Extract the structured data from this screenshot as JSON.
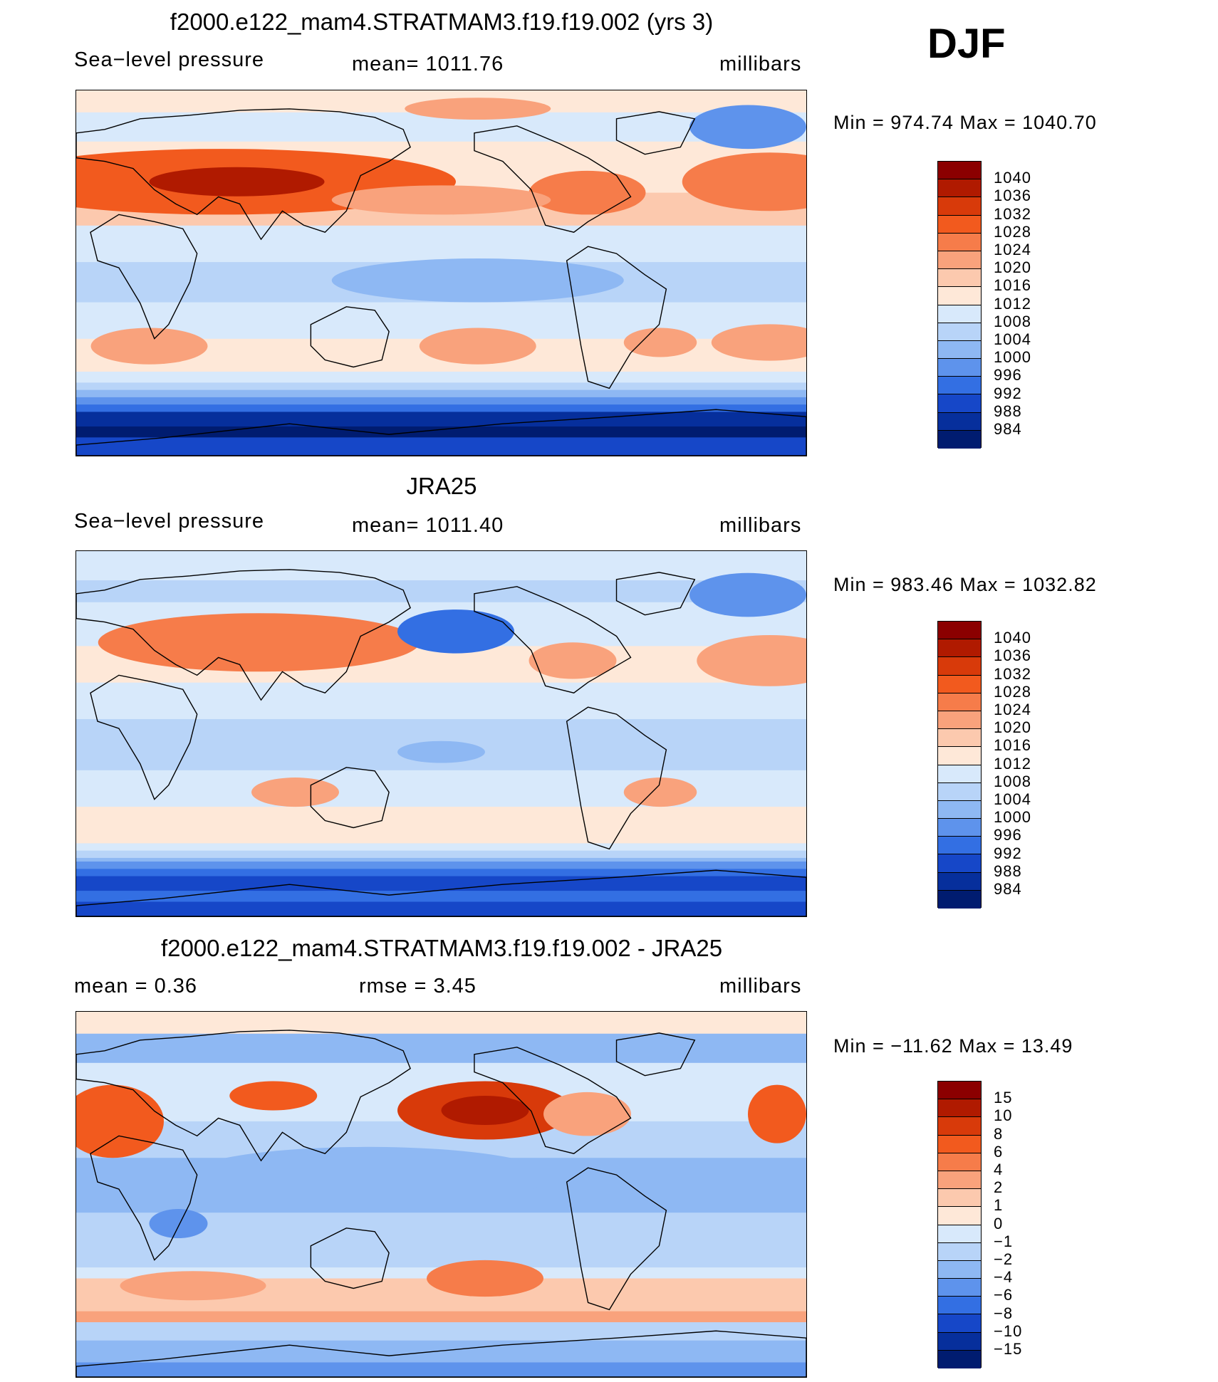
{
  "season": "DJF",
  "panels": [
    {
      "title": "f2000.e122_mam4.STRATMAM3.f19.f19.002 (yrs 3)",
      "subtitle_left": "Sea−level pressure",
      "subtitle_center": "mean=  1011.76",
      "subtitle_right": "millibars",
      "minmax": "Min  =  974.74  Max  =  1040.70",
      "kind": "model"
    },
    {
      "title": "JRA25",
      "subtitle_left": "Sea−level pressure",
      "subtitle_center": "mean=  1011.40",
      "subtitle_right": "millibars",
      "minmax": "Min  =  983.46  Max  =  1032.82",
      "kind": "obs"
    },
    {
      "title": "f2000.e122_mam4.STRATMAM3.f19.f19.002 - JRA25",
      "subtitle_left": "mean  =     0.36",
      "subtitle_center": "rmse  =     3.45",
      "subtitle_right": "millibars",
      "minmax": "Min  =  −11.62  Max  =     13.49",
      "kind": "diff"
    }
  ],
  "colorbars": [
    {
      "labels": [
        "1040",
        "1036",
        "1032",
        "1028",
        "1024",
        "1020",
        "1016",
        "1012",
        "1008",
        "1004",
        "1000",
        "996",
        "992",
        "988",
        "984"
      ],
      "colors": [
        "#8b0000",
        "#b01a00",
        "#d83a0a",
        "#f25a1e",
        "#f67c4a",
        "#f9a27c",
        "#fcc9ae",
        "#fee8d8",
        "#d8e9fb",
        "#b8d4f8",
        "#8eb8f3",
        "#5e93ec",
        "#336fe3",
        "#1647c8",
        "#062f9c",
        "#001c70"
      ]
    },
    {
      "labels": [
        "1040",
        "1036",
        "1032",
        "1028",
        "1024",
        "1020",
        "1016",
        "1012",
        "1008",
        "1004",
        "1000",
        "996",
        "992",
        "988",
        "984"
      ],
      "colors": [
        "#8b0000",
        "#b01a00",
        "#d83a0a",
        "#f25a1e",
        "#f67c4a",
        "#f9a27c",
        "#fcc9ae",
        "#fee8d8",
        "#d8e9fb",
        "#b8d4f8",
        "#8eb8f3",
        "#5e93ec",
        "#336fe3",
        "#1647c8",
        "#062f9c",
        "#001c70"
      ]
    },
    {
      "labels": [
        "15",
        "10",
        "8",
        "6",
        "4",
        "2",
        "1",
        "0",
        "−1",
        "−2",
        "−4",
        "−6",
        "−8",
        "−10",
        "−15"
      ],
      "colors": [
        "#8b0000",
        "#b01a00",
        "#d83a0a",
        "#f25a1e",
        "#f67c4a",
        "#f9a27c",
        "#fcc9ae",
        "#fee8d8",
        "#d8e9fb",
        "#b8d4f8",
        "#8eb8f3",
        "#5e93ec",
        "#336fe3",
        "#1647c8",
        "#062f9c",
        "#001c70"
      ]
    }
  ]
}
